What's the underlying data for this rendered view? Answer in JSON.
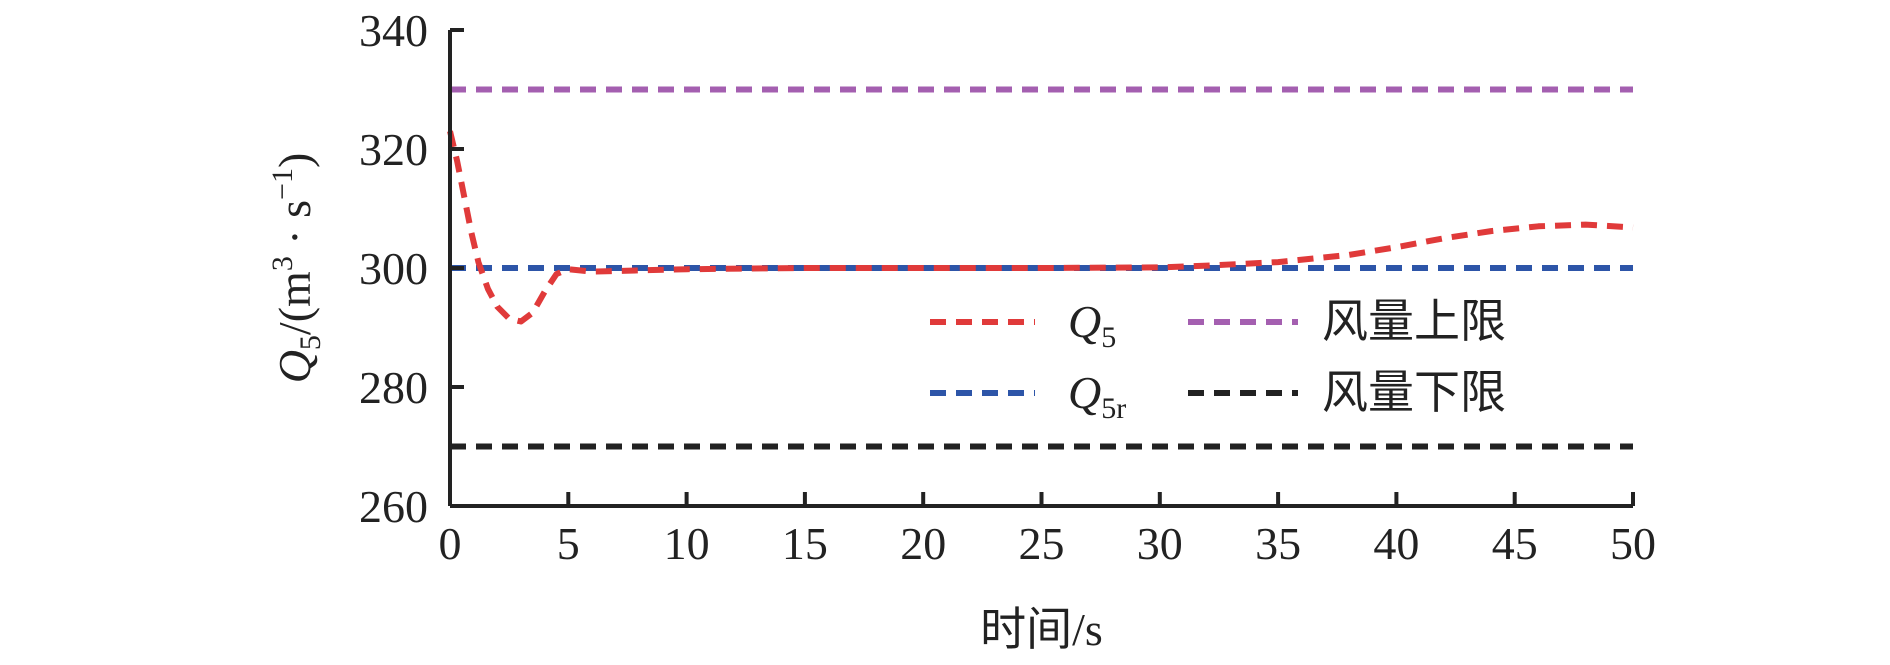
{
  "chart_data": {
    "type": "line",
    "xlabel": "时间/s",
    "ylabel": {
      "base": "Q",
      "sub": "5",
      "rest": "/(m",
      "sup": "3",
      "mid": " · s",
      "sup2": "−1",
      "end": ")"
    },
    "xlim": [
      0,
      50
    ],
    "ylim": [
      260,
      340
    ],
    "xticks": [
      0,
      5,
      10,
      15,
      20,
      25,
      30,
      35,
      40,
      45,
      50
    ],
    "yticks": [
      260,
      280,
      300,
      320,
      340
    ],
    "grid": false,
    "legend_position": "right-center",
    "series": [
      {
        "name": "Q5",
        "name_base": "Q",
        "name_sub": "5",
        "color": "#e03a3a",
        "style": "dashed",
        "x": [
          0,
          0.3,
          0.6,
          0.9,
          1.2,
          1.6,
          2.0,
          2.5,
          3.0,
          3.5,
          4.0,
          4.5,
          5.0,
          6,
          8,
          10,
          15,
          20,
          25,
          30,
          32,
          35,
          38,
          40,
          42,
          44,
          46,
          48,
          50
        ],
        "y": [
          323,
          318,
          312,
          306,
          301,
          296.5,
          293.5,
          291.5,
          291,
          292.5,
          296,
          299,
          299.8,
          299.4,
          299.6,
          299.8,
          300,
          300,
          300,
          300.1,
          300.4,
          301,
          302.2,
          303.5,
          305,
          306.2,
          307,
          307.3,
          306.8
        ]
      },
      {
        "name": "Q5r",
        "name_base": "Q",
        "name_sub": "5r",
        "color": "#2d55a8",
        "style": "dashed",
        "x": [
          0,
          50
        ],
        "y": [
          300,
          300
        ]
      },
      {
        "name": "风量上限",
        "color": "#a45fb0",
        "style": "dashed",
        "x": [
          0,
          50
        ],
        "y": [
          330,
          330
        ]
      },
      {
        "name": "风量下限",
        "color": "#222222",
        "style": "dashed",
        "x": [
          0,
          50
        ],
        "y": [
          270,
          270
        ]
      }
    ]
  }
}
